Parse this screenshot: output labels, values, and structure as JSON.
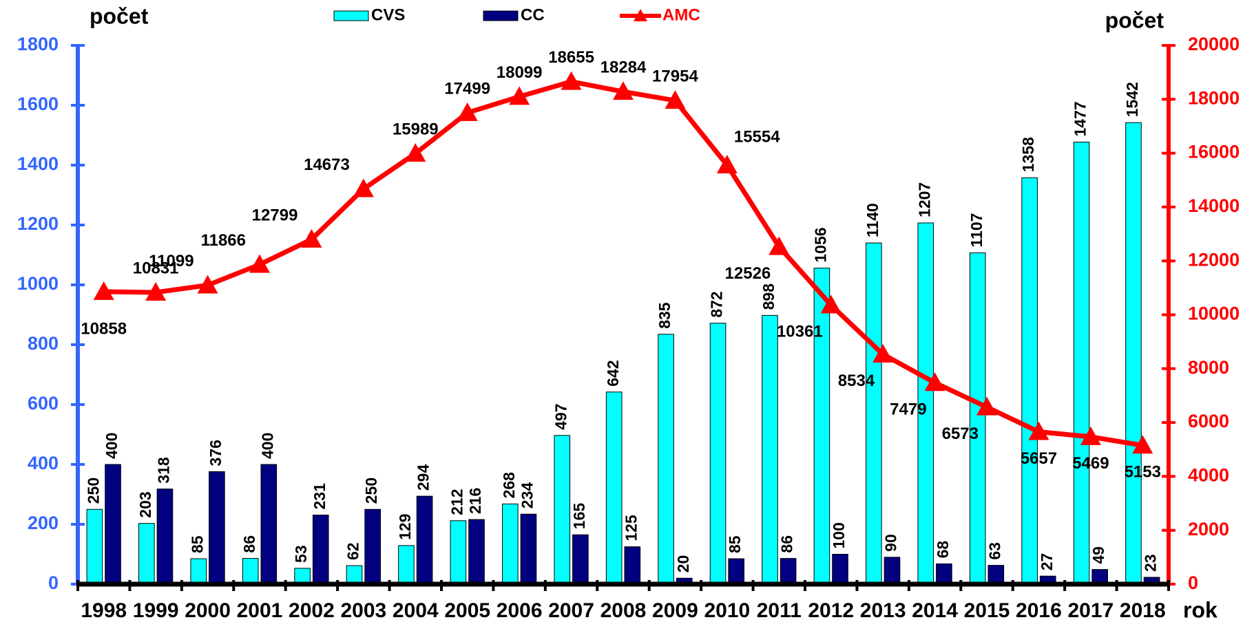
{
  "chart_data": {
    "type": "bar_line",
    "y_label": "počet",
    "y2_label": "počet",
    "x_label": "rok",
    "categories": [
      "1998",
      "1999",
      "2000",
      "2001",
      "2002",
      "2003",
      "2004",
      "2005",
      "2006",
      "2007",
      "2008",
      "2009",
      "2010",
      "2011",
      "2012",
      "2013",
      "2014",
      "2015",
      "2016",
      "2017",
      "2018"
    ],
    "series": [
      {
        "name": "CVS",
        "type": "bar",
        "color": "#00ffff",
        "values": [
          250,
          203,
          85,
          86,
          53,
          62,
          129,
          212,
          268,
          497,
          642,
          835,
          872,
          898,
          1056,
          1140,
          1207,
          1107,
          1358,
          1477,
          1542
        ]
      },
      {
        "name": "CC",
        "type": "bar",
        "color": "#000080",
        "values": [
          400,
          318,
          376,
          400,
          231,
          250,
          294,
          216,
          234,
          165,
          125,
          20,
          85,
          86,
          100,
          90,
          68,
          63,
          27,
          49,
          23
        ]
      },
      {
        "name": "AMC",
        "type": "line",
        "axis": "y2",
        "color": "#ff0000",
        "values": [
          10858,
          10831,
          11099,
          11866,
          12799,
          14673,
          15989,
          17499,
          18099,
          18655,
          18284,
          17954,
          15554,
          12526,
          10361,
          8534,
          7479,
          6573,
          5657,
          5469,
          5153
        ]
      }
    ],
    "ylim": [
      0,
      1800
    ],
    "yticks": [
      0,
      200,
      400,
      600,
      800,
      1000,
      1200,
      1400,
      1600,
      1800
    ],
    "y2lim": [
      0,
      20000
    ],
    "y2ticks": [
      0,
      2000,
      4000,
      6000,
      8000,
      10000,
      12000,
      14000,
      16000,
      18000,
      20000
    ],
    "left_axis_color": "#3366ff",
    "right_axis_color": "#ff0000"
  }
}
